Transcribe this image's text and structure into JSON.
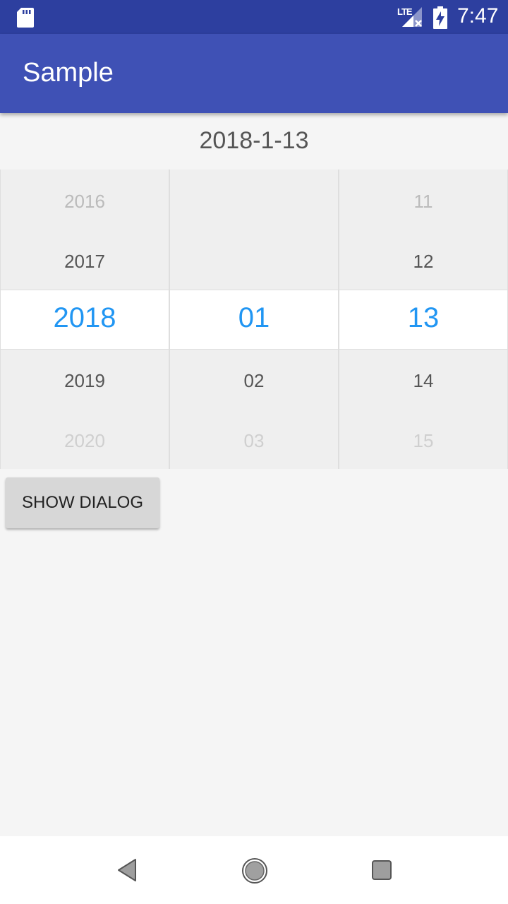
{
  "status_bar": {
    "network": "LTE",
    "time": "7:47",
    "icons": [
      "sd-card-icon",
      "signal-icon",
      "battery-charging-icon"
    ]
  },
  "app_bar": {
    "title": "Sample"
  },
  "selected_date": "2018-1-13",
  "picker": {
    "year": {
      "items": [
        "2016",
        "2017",
        "2018",
        "2019",
        "2020"
      ],
      "selected_index": 2
    },
    "month": {
      "items": [
        "",
        "",
        "01",
        "02",
        "03"
      ],
      "selected_index": 2
    },
    "day": {
      "items": [
        "11",
        "12",
        "13",
        "14",
        "15"
      ],
      "selected_index": 2
    }
  },
  "show_dialog_button": {
    "label": "SHOW DIALOG"
  },
  "nav_bar": {
    "icons": [
      "back-icon",
      "home-icon",
      "recent-apps-icon"
    ]
  },
  "colors": {
    "status_bar": "#2d3f9f",
    "app_bar": "#3f51b5",
    "selected_text": "#2196f3"
  }
}
